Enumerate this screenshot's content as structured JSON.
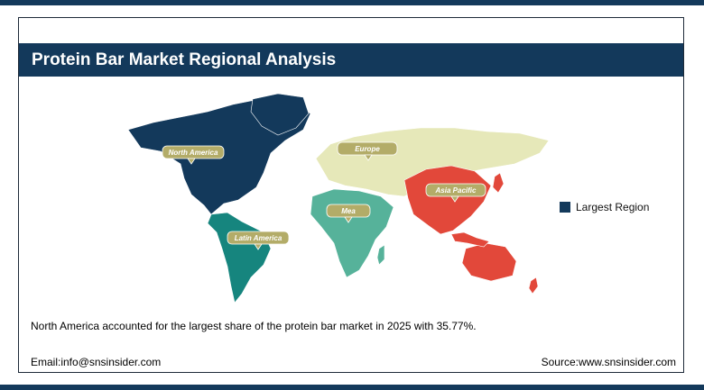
{
  "title": "Protein Bar Market Regional Analysis",
  "regions": [
    {
      "name": "North America",
      "color": "#13395b"
    },
    {
      "name": "Europe",
      "color": "#e6e8b9"
    },
    {
      "name": "Asia Pacific",
      "color": "#e2483a"
    },
    {
      "name": "Mea",
      "color": "#56b29a"
    },
    {
      "name": "Latin America",
      "color": "#16857e"
    }
  ],
  "callout_color": "#b3ac68",
  "legend": {
    "label": "Largest Region",
    "color": "#13395b"
  },
  "summary": "North America accounted for the largest share of the protein bar market in 2025 with 35.77%.",
  "footer": {
    "email": "Email:info@snsinsider.com",
    "source": "Source:www.snsinsider.com"
  }
}
